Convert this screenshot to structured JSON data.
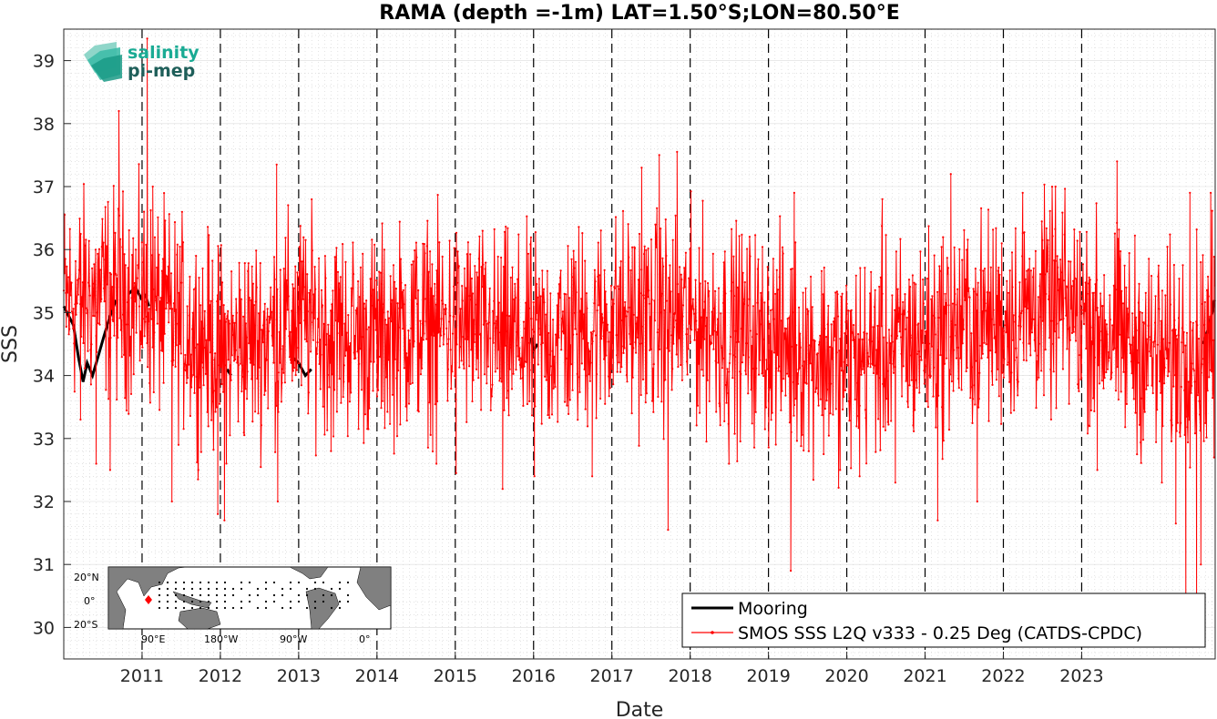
{
  "chart_data": {
    "type": "line",
    "title": "RAMA (depth =-1m) LAT=1.50°S;LON=80.50°E",
    "xlabel": "Date",
    "ylabel": "SSS",
    "xlim": [
      "2010-01-01",
      "2024-09-15"
    ],
    "ylim": [
      29.5,
      39.5
    ],
    "x_ticks": [
      2011,
      2012,
      2013,
      2014,
      2015,
      2016,
      2017,
      2018,
      2019,
      2020,
      2021,
      2022,
      2023
    ],
    "y_ticks": [
      30,
      31,
      32,
      33,
      34,
      35,
      36,
      37,
      38,
      39
    ],
    "grid": "minor dotted",
    "year_markers": "dashed vertical lines at each January 1",
    "legend_position": "bottom-right",
    "series": [
      {
        "name": "Mooring",
        "color": "#000000",
        "style": "solid thick",
        "segments": [
          {
            "x": [
              "2010-01-01",
              "2010-02-15",
              "2010-03-10",
              "2010-04-01",
              "2010-04-20",
              "2010-05-15",
              "2010-06-10",
              "2010-07-05",
              "2010-08-01",
              "2010-09-01"
            ],
            "y": [
              35.1,
              34.8,
              34.3,
              33.9,
              34.2,
              34.0,
              34.3,
              34.6,
              34.9,
              35.2
            ]
          },
          {
            "x": [
              "2010-11-01",
              "2010-12-01",
              "2011-01-01"
            ],
            "y": [
              35.3,
              35.4,
              35.2
            ]
          },
          {
            "x": [
              "2011-01-15",
              "2011-02-01"
            ],
            "y": [
              35.3,
              35.1
            ]
          },
          {
            "x": [
              "2012-02-01",
              "2012-02-20"
            ],
            "y": [
              34.1,
              34.0
            ]
          },
          {
            "x": [
              "2012-12-01",
              "2013-01-01",
              "2013-02-01",
              "2013-03-01"
            ],
            "y": [
              34.3,
              34.2,
              34.0,
              34.1
            ]
          },
          {
            "x": [
              "2015-12-20",
              "2016-01-01",
              "2016-01-20"
            ],
            "y": [
              34.6,
              34.4,
              34.5
            ]
          },
          {
            "x": [
              "2024-07-20",
              "2024-08-10",
              "2024-09-01",
              "2024-09-12"
            ],
            "y": [
              34.5,
              34.7,
              35.0,
              35.2
            ]
          }
        ]
      },
      {
        "name": "SMOS SSS L2Q v333 - 0.25 Deg (CATDS-CPDC)",
        "color": "#ff0000",
        "style": "line with point markers",
        "base_level": [
          [
            "2010-01-01",
            35.2
          ],
          [
            "2010-07-01",
            35.3
          ],
          [
            "2011-01-01",
            35.2
          ],
          [
            "2011-07-01",
            34.8
          ],
          [
            "2012-01-01",
            34.4
          ],
          [
            "2012-07-01",
            34.6
          ],
          [
            "2013-01-01",
            34.9
          ],
          [
            "2013-07-01",
            34.7
          ],
          [
            "2014-01-01",
            34.6
          ],
          [
            "2014-07-01",
            34.8
          ],
          [
            "2015-01-01",
            34.8
          ],
          [
            "2015-07-01",
            34.6
          ],
          [
            "2016-01-01",
            34.5
          ],
          [
            "2016-07-01",
            34.7
          ],
          [
            "2017-01-01",
            34.9
          ],
          [
            "2017-07-01",
            34.9
          ],
          [
            "2018-01-01",
            34.9
          ],
          [
            "2018-07-01",
            34.7
          ],
          [
            "2019-01-01",
            34.6
          ],
          [
            "2019-07-01",
            34.4
          ],
          [
            "2020-01-01",
            34.2
          ],
          [
            "2020-07-01",
            34.4
          ],
          [
            "2021-01-01",
            34.6
          ],
          [
            "2021-07-01",
            34.8
          ],
          [
            "2022-01-01",
            34.9
          ],
          [
            "2022-07-01",
            35.1
          ],
          [
            "2023-01-01",
            35.0
          ],
          [
            "2023-07-01",
            34.6
          ],
          [
            "2024-01-01",
            34.3
          ],
          [
            "2024-09-15",
            34.6
          ]
        ],
        "noise_amplitude": 0.8,
        "sample_interval_days": 2.4,
        "extremes": [
          [
            "2010-01-05",
            36.55
          ],
          [
            "2010-03-20",
            33.3
          ],
          [
            "2010-06-01",
            32.6
          ],
          [
            "2010-08-05",
            32.5
          ],
          [
            "2010-09-15",
            38.2
          ],
          [
            "2011-01-25",
            39.35
          ],
          [
            "2011-02-20",
            37.0
          ],
          [
            "2011-05-20",
            32.0
          ],
          [
            "2011-09-20",
            32.5
          ],
          [
            "2011-12-20",
            31.8
          ],
          [
            "2012-01-20",
            31.7
          ],
          [
            "2012-09-20",
            37.35
          ],
          [
            "2012-09-25",
            32.0
          ],
          [
            "2013-06-01",
            32.8
          ],
          [
            "2014-10-05",
            32.6
          ],
          [
            "2015-01-05",
            32.45
          ],
          [
            "2015-08-10",
            32.2
          ],
          [
            "2016-01-05",
            32.4
          ],
          [
            "2016-10-01",
            32.4
          ],
          [
            "2017-05-20",
            37.3
          ],
          [
            "2017-08-10",
            37.5
          ],
          [
            "2017-09-20",
            31.55
          ],
          [
            "2017-11-01",
            37.55
          ],
          [
            "2018-07-01",
            32.6
          ],
          [
            "2019-04-15",
            30.9
          ],
          [
            "2019-05-01",
            36.9
          ],
          [
            "2019-12-01",
            32.5
          ],
          [
            "2020-03-01",
            32.4
          ],
          [
            "2020-06-15",
            36.8
          ],
          [
            "2020-08-15",
            32.3
          ],
          [
            "2021-03-01",
            31.7
          ],
          [
            "2021-05-01",
            37.2
          ],
          [
            "2021-09-01",
            32.0
          ],
          [
            "2022-04-01",
            36.9
          ],
          [
            "2022-09-01",
            37.0
          ],
          [
            "2023-03-15",
            32.5
          ],
          [
            "2023-06-15",
            37.4
          ],
          [
            "2024-01-10",
            32.3
          ],
          [
            "2024-03-15",
            31.65
          ],
          [
            "2024-05-01",
            30.2
          ],
          [
            "2024-05-20",
            36.9
          ],
          [
            "2024-06-20",
            30.1
          ],
          [
            "2024-07-10",
            31.0
          ],
          [
            "2024-08-25",
            36.9
          ],
          [
            "2024-09-10",
            32.7
          ]
        ]
      }
    ]
  },
  "logo": {
    "line1": "salinity",
    "line2": "pi-mep",
    "color": "#1aab94",
    "line2_color": "#1f5f5a"
  },
  "inset_map": {
    "lat_labels": [
      "20°N",
      "0°",
      "20°S"
    ],
    "lon_labels": [
      "90°E",
      "180°W",
      "90°W",
      "0°"
    ],
    "marker_color": "#ff0000"
  }
}
